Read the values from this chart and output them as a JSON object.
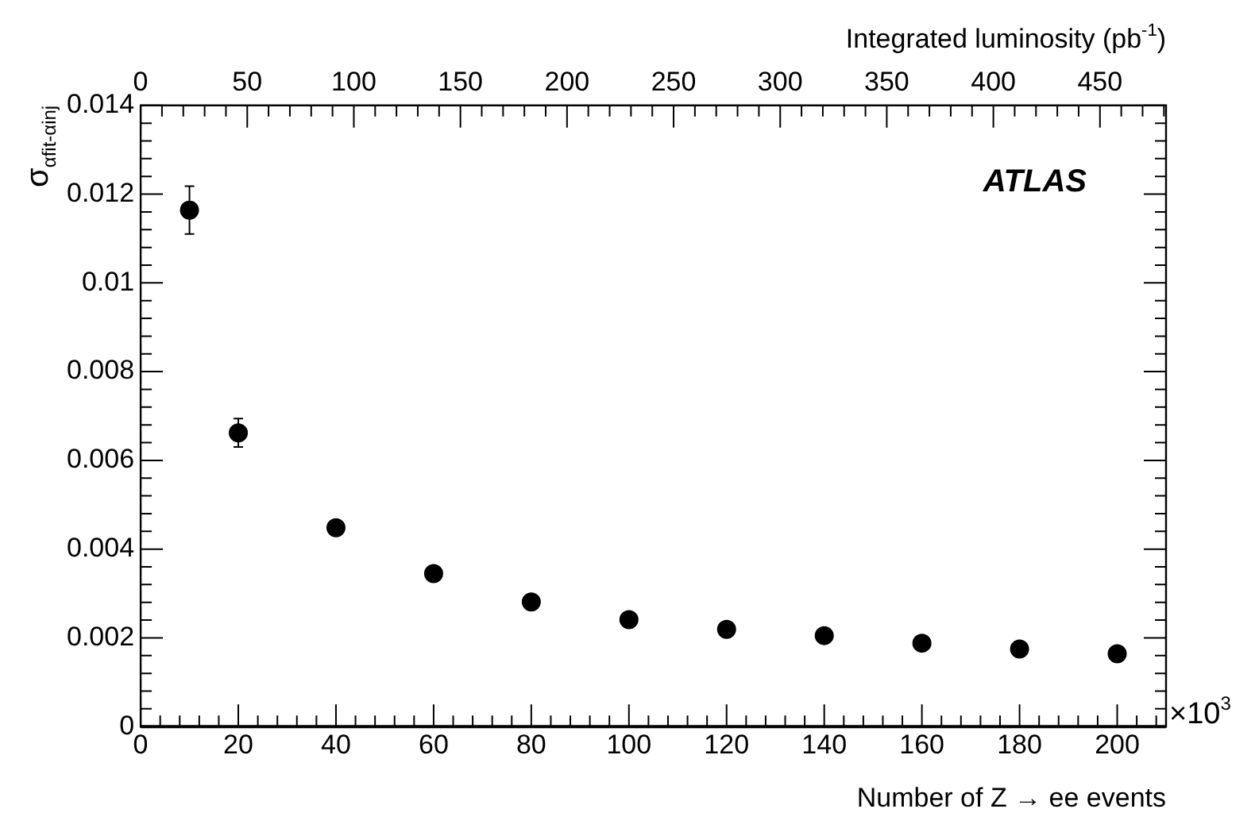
{
  "chart_data": {
    "type": "scatter",
    "xlabel": "Number of Z → ee events",
    "x2label": "Integrated luminosity (pb$^{-1}$)",
    "ylabel": "σ$_{αfit-αinj}$",
    "annotations": [
      "ATLAS",
      "×10$^{3}$"
    ],
    "x": [
      10,
      20,
      40,
      60,
      80,
      100,
      120,
      140,
      160,
      180,
      200
    ],
    "series": [
      {
        "color": "#000000",
        "values": [
          0.01164,
          0.00662,
          0.00448,
          0.00345,
          0.00281,
          0.00241,
          0.00219,
          0.00205,
          0.00188,
          0.00175,
          0.00164
        ],
        "errors": [
          0.00054,
          0.00032,
          null,
          null,
          null,
          null,
          null,
          null,
          null,
          null,
          null
        ]
      }
    ],
    "xlim": [
      0,
      210
    ],
    "xticks": [
      0,
      20,
      40,
      60,
      80,
      100,
      120,
      140,
      160,
      180,
      200
    ],
    "x2lim": [
      0,
      481
    ],
    "x2ticks": [
      0,
      50,
      100,
      150,
      200,
      250,
      300,
      350,
      400,
      450
    ],
    "ylim": [
      0,
      0.014
    ],
    "yticks": [
      0,
      0.002,
      0.004,
      0.006,
      0.008,
      0.01,
      0.012,
      0.014
    ],
    "marker": "circle",
    "grid": false,
    "legend": false
  }
}
